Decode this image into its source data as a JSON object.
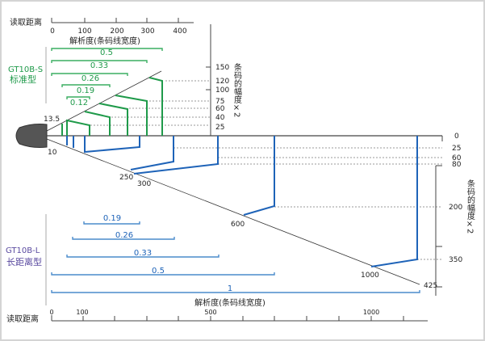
{
  "colors": {
    "standard": "#1f9a4a",
    "long_range": "#1e63b8",
    "model_l_label": "#5a4aa0"
  },
  "top": {
    "distance_label": "读取距离",
    "ticks": [
      "0",
      "100",
      "200",
      "300",
      "400"
    ],
    "resolution_label": "解析度(条码线宽度)",
    "model": "GT10B-S",
    "model_type": "标准型",
    "resolutions": [
      "0.5",
      "0.33",
      "0.26",
      "0.19",
      "0.12"
    ],
    "width_axis_title": "条码的幅度×2",
    "width_ticks": [
      "150",
      "120",
      "100",
      "75",
      "60",
      "40",
      "25"
    ],
    "near_label": "13.5"
  },
  "bottom": {
    "near_label": "10",
    "width_ticks": [
      "0",
      "25",
      "60",
      "80",
      "200",
      "350"
    ],
    "width_axis_title": "条码的幅度×2",
    "distance_marks": [
      "250",
      "300",
      "600",
      "1000",
      "425"
    ],
    "model": "GT10B-L",
    "model_type": "长距离型",
    "resolutions": [
      "0.19",
      "0.26",
      "0.33",
      "0.5",
      "1"
    ],
    "resolution_label": "解析度(条码线宽度)",
    "distance_label": "读取距离",
    "ticks": [
      "0",
      "100",
      "500",
      "1000"
    ]
  },
  "icons": {
    "scanner": "scanner-head-icon"
  }
}
